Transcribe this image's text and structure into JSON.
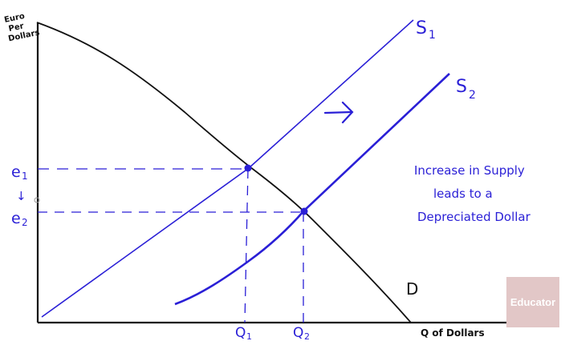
{
  "colors": {
    "axis": "#111111",
    "supply": "#2a1fd6",
    "demand": "#111111",
    "watermark_bg": "#e2c7c7"
  },
  "y_axis_label": [
    "Euro",
    "Per",
    "Dollars"
  ],
  "x_axis_label": "Q of Dollars",
  "curves": {
    "s1": "S",
    "s1_sub": "1",
    "s2": "S",
    "s2_sub": "2",
    "demand": "D"
  },
  "ticks": {
    "e1": "e",
    "e1_sub": "1",
    "e2": "e",
    "e2_sub": "2",
    "arrow_down": "↓",
    "q1": "Q",
    "q1_sub": "1",
    "q2": "Q",
    "q2_sub": "2"
  },
  "annotation": [
    "Increase in Supply",
    "leads to a",
    "Depreciated Dollar"
  ],
  "watermark": "Educator"
}
